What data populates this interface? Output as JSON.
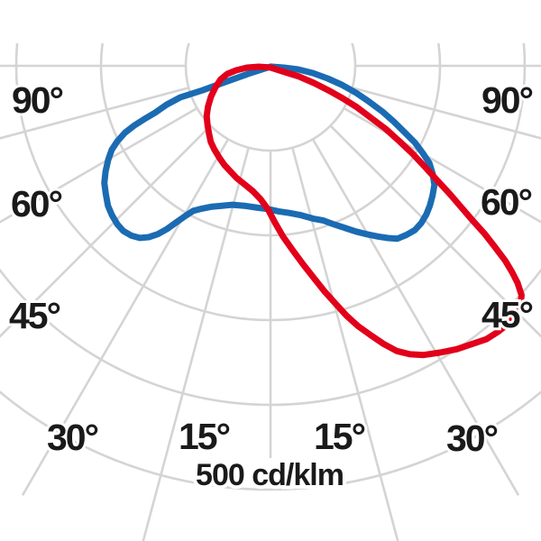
{
  "chart": {
    "labels": {
      "left_90": "90°",
      "left_60": "60°",
      "left_45": "45°",
      "left_30": "30°",
      "left_15": "15°",
      "right_90": "90°",
      "right_60": "60°",
      "right_45": "45°",
      "right_30": "30°",
      "right_15": "15°",
      "unit": "500 cd/klm"
    }
  },
  "chart_data": {
    "type": "line",
    "subtype": "polar-photometric-luminous-intensity-distribution",
    "units": "cd/klm",
    "orientation": "0° at nadir (pointing down), angles increase to both sides up to 90°, pole at top center",
    "grid": {
      "rings_cd_per_klm": [
        100,
        200,
        300,
        400,
        500
      ],
      "ring_label": "500 cd/klm",
      "radial_step_deg": 15,
      "labeled_angles_deg": [
        15,
        30,
        45,
        60,
        90
      ],
      "grid_on": true
    },
    "series": [
      {
        "name": "intensity-curve-blue",
        "color": "#1b6bb3",
        "points_gamma_deg_vs_cd_klm": [
          [
            0,
            1
          ],
          [
            -70.2,
            28
          ],
          [
            -70.2,
            57
          ],
          [
            -70.2,
            85
          ],
          [
            -70.7,
            113
          ],
          [
            -69.5,
            131
          ],
          [
            -67.9,
            147
          ],
          [
            -67.1,
            162
          ],
          [
            -66.4,
            175
          ],
          [
            -65.3,
            189
          ],
          [
            -63.7,
            202
          ],
          [
            -62.1,
            212
          ],
          [
            -60.0,
            221
          ],
          [
            -57.4,
            231
          ],
          [
            -54.8,
            240
          ],
          [
            -52.2,
            246
          ],
          [
            -49.3,
            253
          ],
          [
            -46.7,
            257
          ],
          [
            -44.0,
            260
          ],
          [
            -41.7,
            261
          ],
          [
            -39.3,
            259
          ],
          [
            -37.2,
            255
          ],
          [
            -35.4,
            248
          ],
          [
            -33.8,
            239
          ],
          [
            -32.4,
            228
          ],
          [
            -31.1,
            216
          ],
          [
            -29.6,
            204
          ],
          [
            -28.1,
            194
          ],
          [
            -25.7,
            187
          ],
          [
            -22.6,
            180
          ],
          [
            -19.2,
            175
          ],
          [
            -15.3,
            170
          ],
          [
            -10.6,
            168
          ],
          [
            -5.8,
            168
          ],
          [
            -1.1,
            169
          ],
          [
            3.2,
            172
          ],
          [
            7.3,
            175
          ],
          [
            11.6,
            180
          ],
          [
            15.5,
            187
          ],
          [
            18.9,
            193
          ],
          [
            22.0,
            202
          ],
          [
            24.8,
            211
          ],
          [
            27.3,
            220
          ],
          [
            29.8,
            229
          ],
          [
            32.2,
            238
          ],
          [
            34.3,
            246
          ],
          [
            36.3,
            253
          ],
          [
            38.8,
            256
          ],
          [
            41.3,
            258
          ],
          [
            43.8,
            257
          ],
          [
            46.4,
            254
          ],
          [
            48.8,
            250
          ],
          [
            51.3,
            245
          ],
          [
            54.0,
            239
          ],
          [
            56.3,
            230
          ],
          [
            58.5,
            220
          ],
          [
            60.2,
            207
          ],
          [
            62.0,
            193
          ],
          [
            63.6,
            177
          ],
          [
            65.6,
            160
          ],
          [
            67.7,
            143
          ],
          [
            70.0,
            124
          ],
          [
            72.5,
            106
          ],
          [
            75.1,
            87
          ],
          [
            77.5,
            69
          ],
          [
            80.3,
            51
          ],
          [
            82.6,
            33
          ],
          [
            82.4,
            16
          ]
        ]
      },
      {
        "name": "intensity-curve-red",
        "color": "#e2001a",
        "points_gamma_deg_vs_cd_klm": [
          [
            0,
            2
          ],
          [
            66.4,
            19
          ],
          [
            69.4,
            36
          ],
          [
            68.4,
            55
          ],
          [
            67.1,
            74
          ],
          [
            65.8,
            93
          ],
          [
            64.4,
            113
          ],
          [
            62.6,
            134
          ],
          [
            61.3,
            155
          ],
          [
            59.6,
            177
          ],
          [
            58.2,
            198
          ],
          [
            56.7,
            219
          ],
          [
            55.5,
            239
          ],
          [
            54.5,
            259
          ],
          [
            53.5,
            279
          ],
          [
            52.6,
            300
          ],
          [
            51.9,
            321
          ],
          [
            51.1,
            340
          ],
          [
            50.3,
            360
          ],
          [
            49.5,
            375
          ],
          [
            48.7,
            388
          ],
          [
            47.6,
            401
          ],
          [
            46.2,
            409
          ],
          [
            44.5,
            413
          ],
          [
            42.7,
            414
          ],
          [
            40.6,
            413
          ],
          [
            38.3,
            411
          ],
          [
            35.8,
            405
          ],
          [
            33.3,
            400
          ],
          [
            30.6,
            393
          ],
          [
            27.9,
            386
          ],
          [
            25.8,
            378
          ],
          [
            23.9,
            368
          ],
          [
            22.1,
            354
          ],
          [
            20.4,
            339
          ],
          [
            18.6,
            324
          ],
          [
            16.9,
            308
          ],
          [
            15.3,
            291
          ],
          [
            13.5,
            274
          ],
          [
            11.5,
            255
          ],
          [
            9.3,
            237
          ],
          [
            7.0,
            220
          ],
          [
            4.2,
            202
          ],
          [
            1.6,
            185
          ],
          [
            -1.1,
            169
          ],
          [
            -4.2,
            158
          ],
          [
            -8.2,
            149
          ],
          [
            -12.5,
            143
          ],
          [
            -17.0,
            138
          ],
          [
            -21.0,
            133
          ],
          [
            -24.9,
            129
          ],
          [
            -29.2,
            124
          ],
          [
            -33.7,
            119
          ],
          [
            -38.2,
            114
          ],
          [
            -42.2,
            108
          ],
          [
            -46.7,
            102
          ],
          [
            -51.7,
            96
          ],
          [
            -56.9,
            88
          ],
          [
            -62.7,
            79
          ],
          [
            -68.5,
            70
          ],
          [
            -74.7,
            61
          ],
          [
            -79.4,
            52
          ],
          [
            -82.5,
            41
          ],
          [
            -85.6,
            28
          ],
          [
            -85.6,
            14
          ]
        ]
      }
    ]
  }
}
